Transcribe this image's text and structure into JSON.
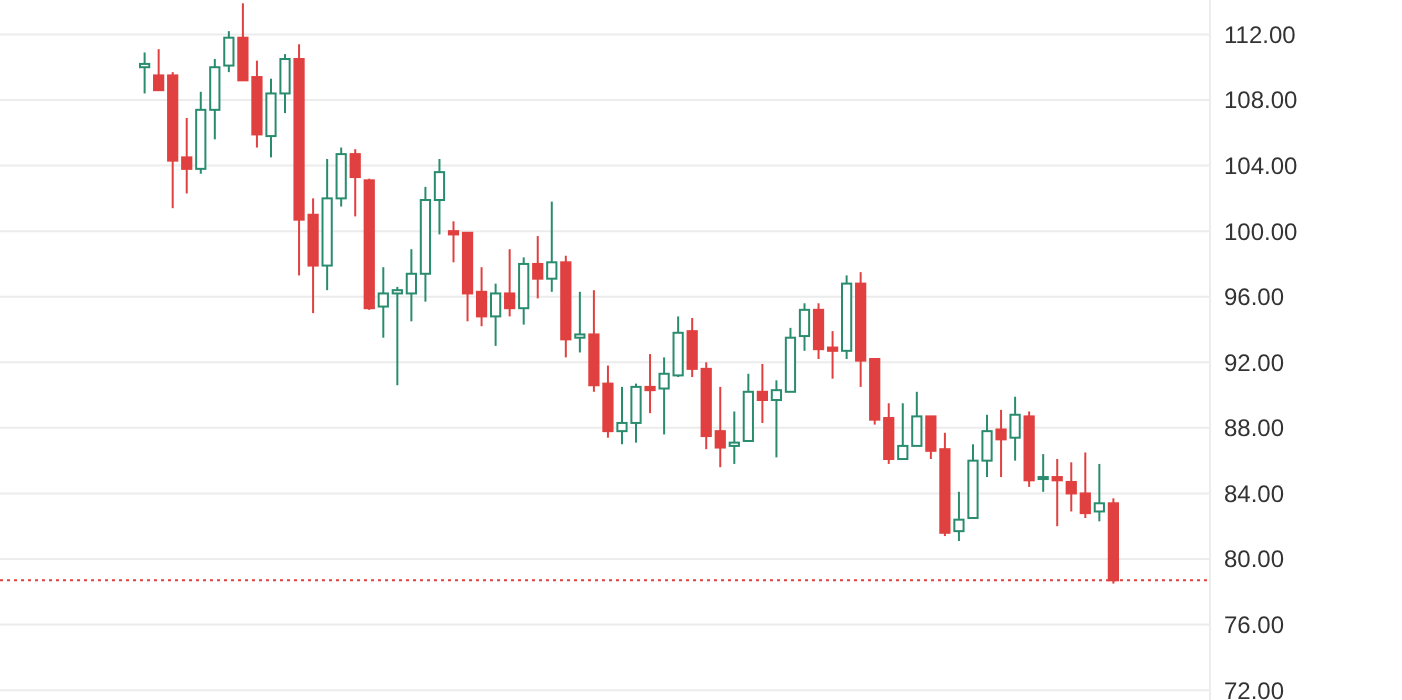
{
  "chart_data": {
    "type": "candlestick",
    "categories": [
      null,
      null,
      null,
      null,
      null,
      null,
      null,
      null,
      null,
      null,
      null,
      null,
      null,
      null,
      null,
      null,
      null,
      null,
      null,
      null,
      null,
      null,
      null,
      null,
      null,
      null,
      null,
      null,
      null,
      null,
      null,
      null,
      null,
      null,
      null,
      null,
      null,
      null,
      null,
      null,
      null,
      null,
      null,
      null,
      null,
      null,
      null,
      null,
      null,
      null,
      null,
      null,
      null,
      null,
      null,
      null,
      null,
      null,
      null,
      null,
      null,
      null,
      null,
      null,
      null,
      null,
      null,
      null,
      null,
      null
    ],
    "ohlc": [
      [
        110.0,
        110.9,
        108.4,
        110.2
      ],
      [
        109.5,
        111.1,
        108.6,
        108.6
      ],
      [
        109.5,
        109.7,
        101.4,
        104.3
      ],
      [
        104.5,
        106.9,
        102.3,
        103.8
      ],
      [
        103.8,
        108.5,
        103.5,
        107.4
      ],
      [
        107.4,
        110.5,
        105.6,
        110.0
      ],
      [
        110.1,
        112.2,
        109.7,
        111.8
      ],
      [
        111.8,
        113.9,
        109.2,
        109.2
      ],
      [
        109.4,
        110.4,
        105.1,
        105.9
      ],
      [
        105.8,
        109.3,
        104.5,
        108.4
      ],
      [
        108.4,
        110.8,
        107.2,
        110.5
      ],
      [
        110.5,
        111.4,
        97.3,
        100.7
      ],
      [
        101.0,
        102.0,
        95.0,
        97.9
      ],
      [
        97.9,
        104.4,
        96.4,
        102.0
      ],
      [
        102.0,
        105.1,
        101.5,
        104.7
      ],
      [
        104.7,
        105.0,
        100.9,
        103.3
      ],
      [
        103.1,
        103.2,
        95.2,
        95.3
      ],
      [
        95.4,
        97.8,
        93.5,
        96.2
      ],
      [
        96.2,
        96.6,
        90.6,
        96.4
      ],
      [
        96.2,
        98.9,
        94.5,
        97.4
      ],
      [
        97.4,
        102.7,
        95.7,
        101.9
      ],
      [
        101.9,
        104.4,
        99.8,
        103.6
      ],
      [
        100.0,
        100.6,
        98.1,
        99.8
      ],
      [
        99.9,
        99.9,
        94.5,
        96.2
      ],
      [
        96.3,
        97.8,
        94.2,
        94.8
      ],
      [
        94.8,
        96.8,
        93.0,
        96.2
      ],
      [
        96.2,
        98.9,
        94.8,
        95.3
      ],
      [
        95.3,
        98.4,
        94.3,
        98.0
      ],
      [
        98.0,
        99.7,
        95.9,
        97.1
      ],
      [
        97.1,
        101.8,
        96.3,
        98.1
      ],
      [
        98.1,
        98.5,
        92.3,
        93.4
      ],
      [
        93.5,
        96.3,
        92.6,
        93.7
      ],
      [
        93.7,
        96.4,
        90.2,
        90.6
      ],
      [
        90.7,
        91.8,
        87.4,
        87.8
      ],
      [
        87.8,
        90.5,
        87.0,
        88.3
      ],
      [
        88.3,
        90.7,
        87.1,
        90.5
      ],
      [
        90.5,
        92.5,
        88.9,
        90.3
      ],
      [
        90.4,
        92.3,
        87.6,
        91.3
      ],
      [
        91.2,
        94.8,
        91.1,
        93.8
      ],
      [
        93.9,
        94.7,
        91.1,
        91.6
      ],
      [
        91.6,
        92.0,
        86.7,
        87.5
      ],
      [
        87.8,
        90.5,
        85.6,
        86.8
      ],
      [
        86.9,
        89.0,
        85.8,
        87.1
      ],
      [
        87.2,
        91.3,
        87.2,
        90.2
      ],
      [
        90.2,
        91.9,
        88.3,
        89.7
      ],
      [
        89.7,
        90.9,
        86.2,
        90.3
      ],
      [
        90.2,
        94.1,
        90.2,
        93.5
      ],
      [
        93.6,
        95.6,
        92.7,
        95.2
      ],
      [
        95.2,
        95.6,
        92.2,
        92.8
      ],
      [
        92.9,
        93.9,
        91.0,
        92.7
      ],
      [
        92.7,
        97.3,
        92.2,
        96.8
      ],
      [
        96.8,
        97.5,
        90.5,
        92.1
      ],
      [
        92.2,
        92.2,
        88.2,
        88.5
      ],
      [
        88.6,
        89.5,
        85.8,
        86.1
      ],
      [
        86.1,
        89.5,
        86.1,
        86.9
      ],
      [
        86.9,
        90.2,
        86.9,
        88.7
      ],
      [
        88.7,
        88.7,
        86.1,
        86.6
      ],
      [
        86.7,
        87.7,
        81.4,
        81.6
      ],
      [
        81.7,
        84.1,
        81.1,
        82.4
      ],
      [
        82.5,
        87.0,
        82.5,
        86.0
      ],
      [
        86.0,
        88.8,
        85.0,
        87.8
      ],
      [
        87.9,
        89.1,
        85.0,
        87.3
      ],
      [
        87.4,
        89.9,
        86.0,
        88.8
      ],
      [
        88.7,
        89.0,
        84.4,
        84.8
      ],
      [
        84.9,
        86.4,
        84.1,
        85.0
      ],
      [
        85.0,
        86.1,
        82.0,
        84.8
      ],
      [
        84.7,
        85.9,
        82.9,
        84.0
      ],
      [
        84.0,
        86.5,
        82.5,
        82.8
      ],
      [
        82.9,
        85.8,
        82.3,
        83.4
      ],
      [
        83.4,
        83.7,
        78.5,
        78.7
      ]
    ],
    "colors": [
      "#2a8c6e",
      "#e0403f",
      "#e0403f",
      "#e0403f",
      "#2a8c6e",
      "#2a8c6e",
      "#2a8c6e",
      "#e0403f",
      "#e0403f",
      "#2a8c6e",
      "#2a8c6e",
      "#e0403f",
      "#e0403f",
      "#2a8c6e",
      "#2a8c6e",
      "#e0403f",
      "#e0403f",
      "#2a8c6e",
      "#2a8c6e",
      "#2a8c6e",
      "#2a8c6e",
      "#2a8c6e",
      "#e0403f",
      "#e0403f",
      "#e0403f",
      "#2a8c6e",
      "#e0403f",
      "#2a8c6e",
      "#e0403f",
      "#2a8c6e",
      "#e0403f",
      "#2a8c6e",
      "#e0403f",
      "#e0403f",
      "#2a8c6e",
      "#2a8c6e",
      "#e0403f",
      "#2a8c6e",
      "#2a8c6e",
      "#e0403f",
      "#e0403f",
      "#e0403f",
      "#2a8c6e",
      "#2a8c6e",
      "#e0403f",
      "#2a8c6e",
      "#2a8c6e",
      "#2a8c6e",
      "#e0403f",
      "#e0403f",
      "#2a8c6e",
      "#e0403f",
      "#e0403f",
      "#e0403f",
      "#2a8c6e",
      "#2a8c6e",
      "#e0403f",
      "#e0403f",
      "#2a8c6e",
      "#2a8c6e",
      "#2a8c6e",
      "#e0403f",
      "#2a8c6e",
      "#e0403f",
      "#2a8c6e",
      "#e0403f",
      "#e0403f",
      "#e0403f",
      "#2a8c6e",
      "#e0403f"
    ],
    "ylim": [
      71.4,
      114.1
    ],
    "yticks": [
      {
        "value": 72,
        "label": "72.00"
      },
      {
        "value": 76,
        "label": "76.00"
      },
      {
        "value": 80,
        "label": "80.00"
      },
      {
        "value": 84,
        "label": "84.00"
      },
      {
        "value": 88,
        "label": "88.00"
      },
      {
        "value": 92,
        "label": "92.00"
      },
      {
        "value": 96,
        "label": "96.00"
      },
      {
        "value": 100,
        "label": "100.00"
      },
      {
        "value": 104,
        "label": "104.00"
      },
      {
        "value": 108,
        "label": "108.00"
      },
      {
        "value": 112,
        "label": "112.00"
      }
    ],
    "grid": "y",
    "ref_lines": [
      {
        "axis": "y",
        "value": 78.7,
        "color": "#e0403f",
        "line_style": "dotted"
      }
    ]
  }
}
